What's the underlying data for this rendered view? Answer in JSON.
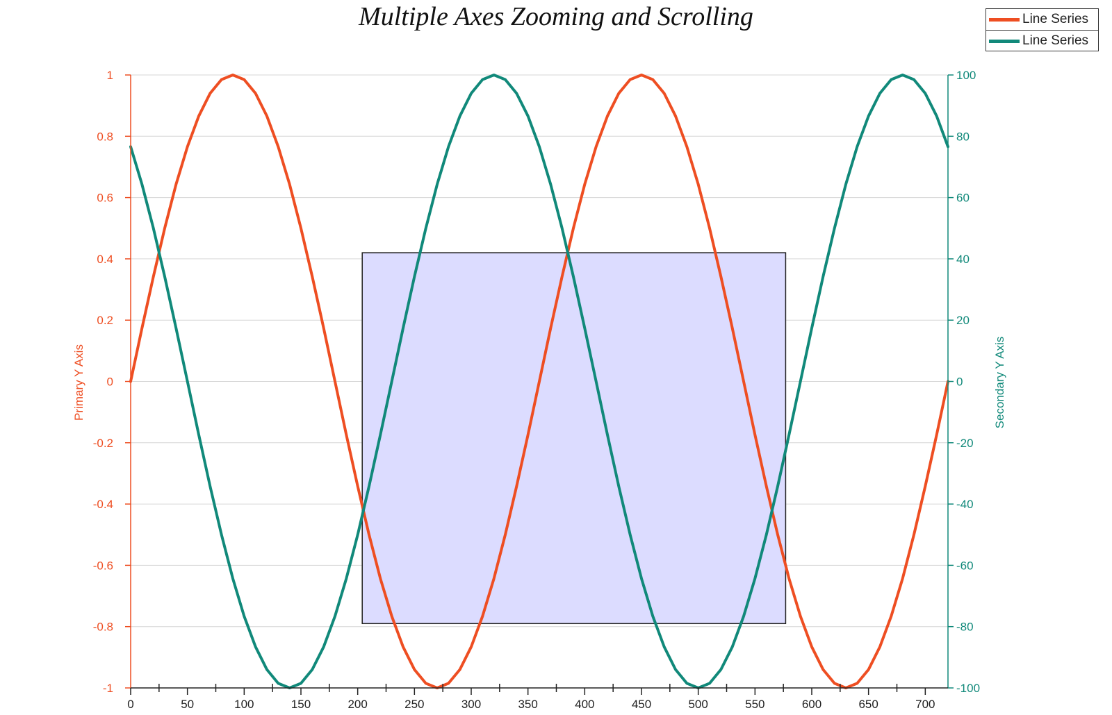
{
  "chart_data": {
    "type": "line",
    "title": "Multiple Axes Zooming and Scrolling",
    "xlabel": "",
    "x": [
      0,
      10,
      20,
      30,
      40,
      50,
      60,
      70,
      80,
      90,
      100,
      110,
      120,
      130,
      140,
      150,
      160,
      170,
      180,
      190,
      200,
      210,
      220,
      230,
      240,
      250,
      260,
      270,
      280,
      290,
      300,
      310,
      320,
      330,
      340,
      350,
      360,
      370,
      380,
      390,
      400,
      410,
      420,
      430,
      440,
      450,
      460,
      470,
      480,
      490,
      500,
      510,
      520,
      530,
      540,
      550,
      560,
      570,
      580,
      590,
      600,
      610,
      620,
      630,
      640,
      650,
      660,
      670,
      680,
      690,
      700,
      710,
      720
    ],
    "xlim": [
      0,
      720
    ],
    "x_ticks": [
      0,
      50,
      100,
      150,
      200,
      250,
      300,
      350,
      400,
      450,
      500,
      550,
      600,
      650,
      700
    ],
    "series": [
      {
        "name": "Line Series",
        "axis": "primary",
        "color": "#ee4e22",
        "values": [
          0,
          0.174,
          0.342,
          0.5,
          0.643,
          0.766,
          0.866,
          0.94,
          0.985,
          1,
          0.985,
          0.94,
          0.866,
          0.766,
          0.643,
          0.5,
          0.342,
          0.174,
          0,
          -0.174,
          -0.342,
          -0.5,
          -0.643,
          -0.766,
          -0.866,
          -0.94,
          -0.985,
          -1,
          -0.985,
          -0.94,
          -0.866,
          -0.766,
          -0.643,
          -0.5,
          -0.342,
          -0.174,
          0,
          0.174,
          0.342,
          0.5,
          0.643,
          0.766,
          0.866,
          0.94,
          0.985,
          1,
          0.985,
          0.94,
          0.866,
          0.766,
          0.643,
          0.5,
          0.342,
          0.174,
          0,
          -0.174,
          -0.342,
          -0.5,
          -0.643,
          -0.766,
          -0.866,
          -0.94,
          -0.985,
          -1,
          -0.985,
          -0.94,
          -0.866,
          -0.766,
          -0.643,
          -0.5,
          -0.342,
          -0.174,
          0
        ]
      },
      {
        "name": "Line Series",
        "axis": "secondary",
        "color": "#11897a",
        "values": [
          76.6,
          64.3,
          50,
          34.2,
          17.4,
          0,
          -17.4,
          -34.2,
          -50,
          -64.3,
          -76.6,
          -86.6,
          -94,
          -98.5,
          -100,
          -98.5,
          -94,
          -86.6,
          -76.6,
          -64.3,
          -50,
          -34.2,
          -17.4,
          0,
          17.4,
          34.2,
          50,
          64.3,
          76.6,
          86.6,
          94,
          98.5,
          100,
          98.5,
          94,
          86.6,
          76.6,
          64.3,
          50,
          34.2,
          17.4,
          0,
          -17.4,
          -34.2,
          -50,
          -64.3,
          -76.6,
          -86.6,
          -94,
          -98.5,
          -100,
          -98.5,
          -94,
          -86.6,
          -76.6,
          -64.3,
          -50,
          -34.2,
          -17.4,
          0,
          17.4,
          34.2,
          50,
          64.3,
          76.6,
          86.6,
          94,
          98.5,
          100,
          98.5,
          94,
          86.6,
          76.6
        ]
      }
    ],
    "y_primary": {
      "label": "Primary Y Axis",
      "color": "#ee4e22",
      "ylim": [
        -1,
        1
      ],
      "ticks": [
        1,
        0.8,
        0.6,
        0.4,
        0.2,
        0,
        -0.2,
        -0.4,
        -0.6,
        -0.8,
        -1
      ],
      "tick_labels": [
        "1",
        "0.8",
        "0.6",
        "0.4",
        "0.2",
        "0",
        "-0.2",
        "-0.4",
        "-0.6",
        "-0.8",
        "-1"
      ]
    },
    "y_secondary": {
      "label": "Secondary Y Axis",
      "color": "#11897a",
      "ylim": [
        -100,
        100
      ],
      "ticks": [
        100,
        80,
        60,
        40,
        20,
        0,
        -20,
        -40,
        -60,
        -80,
        -100
      ],
      "tick_labels": [
        "100",
        "80",
        "60",
        "40",
        "20",
        "0",
        "-20",
        "-40",
        "-60",
        "-80",
        "-100"
      ]
    },
    "grid": true,
    "legend": "top-right",
    "zoom_selection": {
      "x": [
        204,
        577
      ],
      "y_primary": [
        -0.79,
        0.42
      ],
      "fill": "#dcdcff",
      "stroke": "#222222"
    }
  }
}
